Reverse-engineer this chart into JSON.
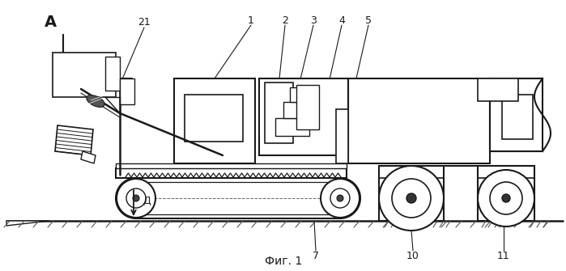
{
  "title": "Фиг. 1",
  "bg_color": "#ffffff",
  "line_color": "#1a1a1a",
  "gray_fill": "#888888",
  "light_gray": "#cccccc"
}
